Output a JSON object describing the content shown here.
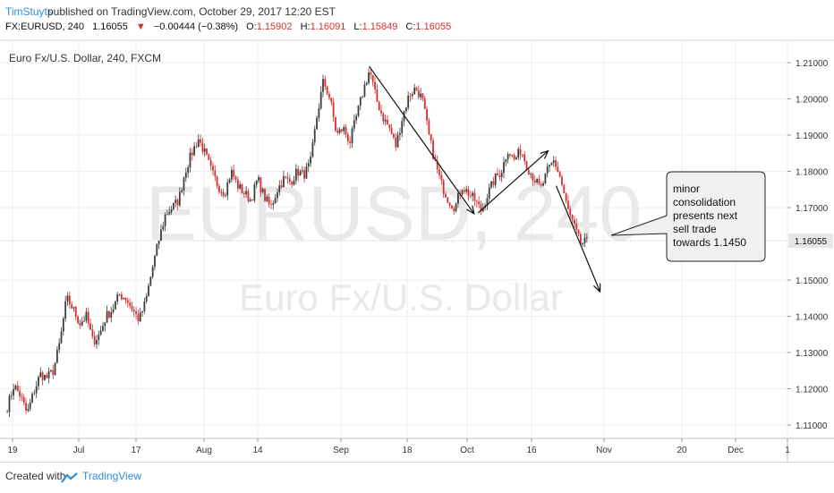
{
  "header": {
    "author": "TimStuyts",
    "published_text": "published on TradingView.com, October 29, 2017 12:20 EST"
  },
  "symbol_bar": {
    "symbol": "FX:EURUSD, 240",
    "last": "1.16055",
    "change_arrow": "▼",
    "change": "−0.00444 (−0.38%)",
    "open_label": "O:",
    "open": "1.15902",
    "high_label": "H:",
    "high": "1.16091",
    "low_label": "L:",
    "low": "1.15849",
    "close_label": "C:",
    "close": "1.16055"
  },
  "colors": {
    "up": "#3c3c3c",
    "down": "#d32f2f",
    "accent": "#2f8fdb",
    "price_label_bg": "#e6e6e6"
  },
  "chart_data": {
    "type": "candlestick",
    "title": "Euro Fx/U.S. Dollar, 240, FXCM",
    "watermark_symbol": "EURUSD, 240",
    "watermark_name": "Euro Fx/U.S. Dollar",
    "last_price_label": "1.16055",
    "last_price": 1.16055,
    "ylim": [
      1.105,
      1.213
    ],
    "y_ticks": [
      "1.21000",
      "1.20000",
      "1.19000",
      "1.18000",
      "1.17000",
      "1.15000",
      "1.14000",
      "1.13000",
      "1.12000",
      "1.11000"
    ],
    "x_ticks": [
      "19",
      "Jul",
      "17",
      "Aug",
      "14",
      "Sep",
      "18",
      "Oct",
      "16",
      "Nov",
      "20",
      "Dec",
      "1"
    ],
    "grid": true,
    "annotation_text": [
      "minor",
      "consolidation",
      "presents next",
      "sell trade",
      "towards 1.1450"
    ],
    "arrows": [
      {
        "from": [
          "Sep 8",
          1.209
        ],
        "to": [
          "Oct 2",
          1.1685
        ]
      },
      {
        "from": [
          "Oct 3",
          1.1685
        ],
        "to": [
          "Oct 19",
          1.1855
        ]
      },
      {
        "from": [
          "Oct 21",
          1.176
        ],
        "to": [
          "Oct 31",
          1.147
        ]
      }
    ],
    "price_path": [
      [
        1.115,
        1.121,
        1.118,
        1.113,
        1.119,
        1.124,
        1.123
      ],
      [
        1.125,
        1.133,
        1.145,
        1.142,
        1.138,
        1.14,
        1.133
      ],
      [
        1.135,
        1.14,
        1.142,
        1.146,
        1.145,
        1.142,
        1.139
      ],
      [
        1.144,
        1.153,
        1.161,
        1.168,
        1.17
      ],
      [
        1.172,
        1.18,
        1.185,
        1.189,
        1.185
      ],
      [
        1.18,
        1.176,
        1.174,
        1.18,
        1.176,
        1.174
      ],
      [
        1.172,
        1.178,
        1.173,
        1.17,
        1.175
      ],
      [
        1.178,
        1.177,
        1.18,
        1.179,
        1.182
      ],
      [
        1.195,
        1.205,
        1.2,
        1.19,
        1.192,
        1.188
      ],
      [
        1.195,
        1.202,
        1.208,
        1.2,
        1.195
      ],
      [
        1.192,
        1.187,
        1.195,
        1.201,
        1.203,
        1.2
      ],
      [
        1.19,
        1.182,
        1.176,
        1.172,
        1.17
      ],
      [
        1.176,
        1.174,
        1.172,
        1.169,
        1.174,
        1.178
      ],
      [
        1.18,
        1.186,
        1.183,
        1.186,
        1.181
      ],
      [
        1.178,
        1.175,
        1.18,
        1.183,
        1.178
      ],
      [
        1.17,
        1.165,
        1.16,
        1.1605
      ]
    ]
  },
  "footer": {
    "created_with": "Created with",
    "brand": "TradingView"
  }
}
